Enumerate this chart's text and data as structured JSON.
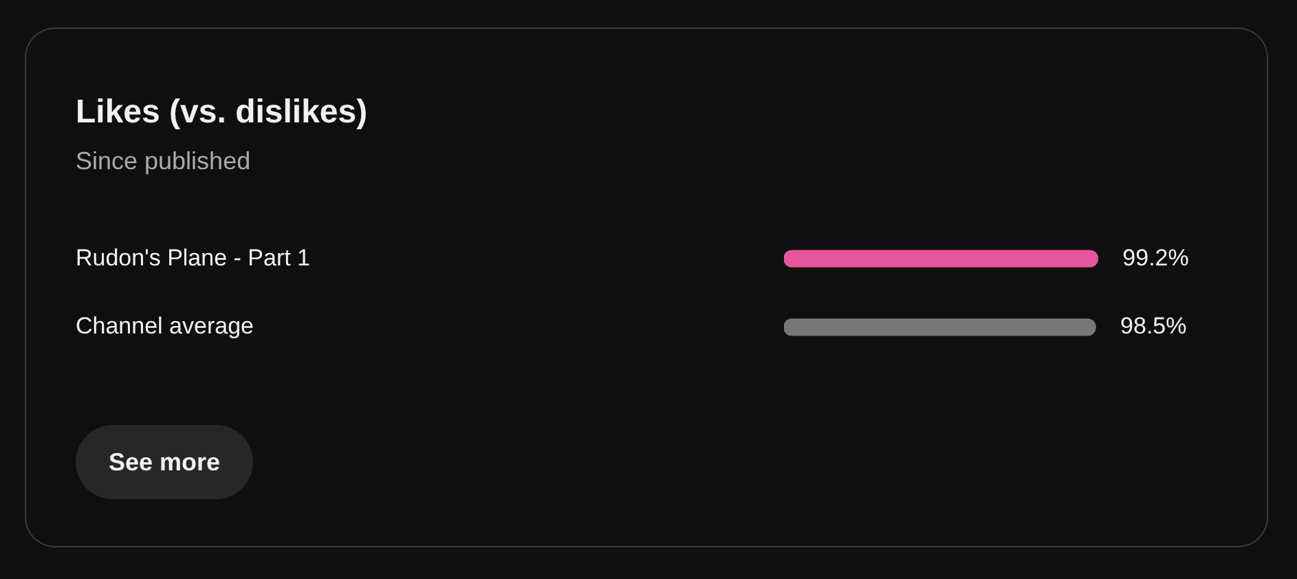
{
  "chart_data": {
    "type": "bar",
    "orientation": "horizontal",
    "title": "Likes (vs. dislikes)",
    "subtitle": "Since published",
    "categories": [
      "Rudon's Plane - Part 1",
      "Channel average"
    ],
    "values": [
      99.2,
      98.5
    ],
    "colors": [
      "#e8559a",
      "#777777"
    ],
    "value_labels": [
      "99.2%",
      "98.5%"
    ],
    "annotations": [
      "See more"
    ],
    "legend": false
  }
}
